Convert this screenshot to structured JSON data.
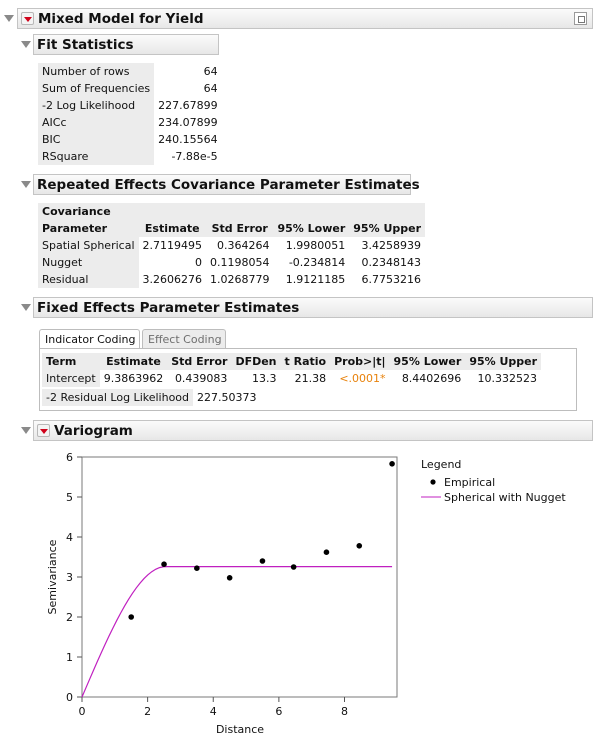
{
  "report": {
    "title": "Mixed Model for Yield"
  },
  "fit_statistics": {
    "title": "Fit Statistics",
    "rows": [
      {
        "label": "Number of rows",
        "value": "64"
      },
      {
        "label": "Sum of Frequencies",
        "value": "64"
      },
      {
        "label": "-2 Log Likelihood",
        "value": "227.67899"
      },
      {
        "label": "AICc",
        "value": "234.07899"
      },
      {
        "label": "BIC",
        "value": "240.15564"
      },
      {
        "label": "RSquare",
        "value": "-7.88e-5"
      }
    ]
  },
  "covariance": {
    "title": "Repeated Effects Covariance Parameter Estimates",
    "col_header_line1": "Covariance",
    "columns": [
      "Parameter",
      "Estimate",
      "Std Error",
      "95% Lower",
      "95% Upper"
    ],
    "rows": [
      [
        "Spatial Spherical",
        "2.7119495",
        "0.364264",
        "1.9980051",
        "3.4258939"
      ],
      [
        "Nugget",
        "0",
        "0.1198054",
        "-0.234814",
        "0.2348143"
      ],
      [
        "Residual",
        "3.2606276",
        "1.0268779",
        "1.9121185",
        "6.7753216"
      ]
    ]
  },
  "fixed_effects": {
    "title": "Fixed Effects Parameter Estimates",
    "tabs": [
      {
        "label": "Indicator Coding",
        "active": true
      },
      {
        "label": "Effect Coding",
        "active": false
      }
    ],
    "columns": [
      "Term",
      "Estimate",
      "Std Error",
      "DFDen",
      "t Ratio",
      "Prob>|t|",
      "95% Lower",
      "95% Upper"
    ],
    "rows": [
      [
        "Intercept",
        "9.3863962",
        "0.439083",
        "13.3",
        "21.38",
        "<.0001*",
        "8.4402696",
        "10.332523"
      ]
    ],
    "residual_label": "-2 Residual Log Likelihood",
    "residual_value": "227.50373",
    "signif_color": "#e8820c"
  },
  "variogram": {
    "title": "Variogram",
    "legend": {
      "title": "Legend",
      "items": [
        {
          "label": "Empirical",
          "kind": "point",
          "color": "#000000"
        },
        {
          "label": "Spherical with Nugget",
          "kind": "line",
          "color": "#c020c0"
        }
      ]
    }
  },
  "chart_data": {
    "type": "scatter",
    "title": "",
    "xlabel": "Distance",
    "ylabel": "Semivariance",
    "xlim": [
      0,
      9.6
    ],
    "ylim": [
      0,
      6
    ],
    "xticks": [
      0,
      2,
      4,
      6,
      8
    ],
    "yticks": [
      0,
      1,
      2,
      3,
      4,
      5,
      6
    ],
    "grid": false,
    "legend_position": "right",
    "series": [
      {
        "name": "Empirical",
        "kind": "scatter",
        "color": "#000000",
        "x": [
          1.5,
          2.5,
          3.5,
          4.5,
          5.5,
          6.45,
          7.45,
          8.45,
          9.45
        ],
        "y": [
          2.0,
          3.32,
          3.22,
          2.98,
          3.4,
          3.25,
          3.62,
          3.78,
          5.83
        ]
      },
      {
        "name": "Spherical with Nugget",
        "kind": "spherical_model",
        "color": "#c020c0",
        "nugget": 0,
        "sill": 3.26,
        "range": 2.55,
        "x_end": 9.45
      }
    ]
  }
}
